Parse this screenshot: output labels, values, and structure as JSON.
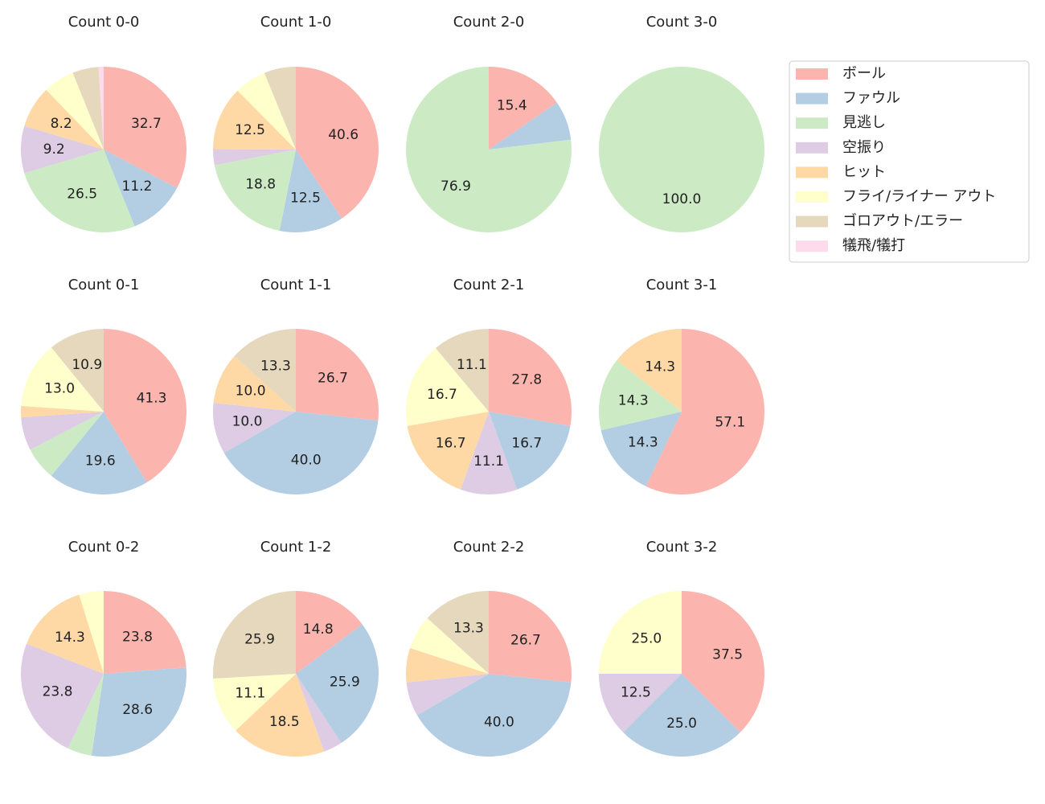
{
  "legend": {
    "labels": [
      "ボール",
      "ファウル",
      "見逃し",
      "空振り",
      "ヒット",
      "フライ/ライナー アウト",
      "ゴロアウト/エラー",
      "犠飛/犠打"
    ],
    "colors": [
      "#fbb4ae",
      "#b3cde3",
      "#ccebc5",
      "#decbe4",
      "#fed9a6",
      "#ffffcc",
      "#e5d8bd",
      "#fddaec"
    ]
  },
  "chart_data": [
    {
      "type": "pie",
      "title": "Count 0-0",
      "values": [
        32.7,
        11.2,
        26.5,
        9.2,
        8.2,
        6.1,
        5.1,
        1.0
      ],
      "value_labels": [
        "32.7",
        "11.2",
        "26.5",
        "9.2",
        "8.2",
        null,
        null,
        null
      ]
    },
    {
      "type": "pie",
      "title": "Count 1-0",
      "values": [
        40.6,
        12.5,
        18.8,
        3.1,
        12.5,
        6.2,
        6.2,
        0
      ],
      "value_labels": [
        "40.6",
        "12.5",
        "18.8",
        null,
        "12.5",
        null,
        null,
        null
      ]
    },
    {
      "type": "pie",
      "title": "Count 2-0",
      "values": [
        15.4,
        7.7,
        76.9,
        0,
        0,
        0,
        0,
        0
      ],
      "value_labels": [
        "15.4",
        null,
        "76.9",
        null,
        null,
        null,
        null,
        null
      ]
    },
    {
      "type": "pie",
      "title": "Count 3-0",
      "values": [
        0,
        0,
        100,
        0,
        0,
        0,
        0,
        0
      ],
      "value_labels": [
        null,
        null,
        "100.0",
        null,
        null,
        null,
        null,
        null
      ]
    },
    {
      "type": "pie",
      "title": "Count 0-1",
      "values": [
        41.3,
        19.6,
        6.5,
        6.5,
        2.2,
        13.0,
        10.9,
        0
      ],
      "value_labels": [
        "41.3",
        "19.6",
        null,
        null,
        null,
        "13.0",
        "10.9",
        null
      ]
    },
    {
      "type": "pie",
      "title": "Count 1-1",
      "values": [
        26.7,
        40.0,
        0,
        10.0,
        10.0,
        0,
        13.3,
        0
      ],
      "value_labels": [
        "26.7",
        "40.0",
        null,
        "10.0",
        "10.0",
        null,
        "13.3",
        null
      ]
    },
    {
      "type": "pie",
      "title": "Count 2-1",
      "values": [
        27.8,
        16.7,
        0,
        11.1,
        16.7,
        16.7,
        11.1,
        0
      ],
      "value_labels": [
        "27.8",
        "16.7",
        null,
        "11.1",
        "16.7",
        "16.7",
        "11.1",
        null
      ]
    },
    {
      "type": "pie",
      "title": "Count 3-1",
      "values": [
        57.1,
        14.3,
        14.3,
        0,
        14.3,
        0,
        0,
        0
      ],
      "value_labels": [
        "57.1",
        "14.3",
        "14.3",
        null,
        "14.3",
        null,
        null,
        null
      ]
    },
    {
      "type": "pie",
      "title": "Count 0-2",
      "values": [
        23.8,
        28.6,
        4.8,
        23.8,
        14.3,
        4.8,
        0,
        0
      ],
      "value_labels": [
        "23.8",
        "28.6",
        null,
        "23.8",
        "14.3",
        null,
        null,
        null
      ]
    },
    {
      "type": "pie",
      "title": "Count 1-2",
      "values": [
        14.8,
        25.9,
        0,
        3.7,
        18.5,
        11.1,
        25.9,
        0
      ],
      "value_labels": [
        "14.8",
        "25.9",
        null,
        null,
        "18.5",
        "11.1",
        "25.9",
        null
      ]
    },
    {
      "type": "pie",
      "title": "Count 2-2",
      "values": [
        26.7,
        40.0,
        0,
        6.7,
        6.7,
        6.7,
        13.3,
        0
      ],
      "value_labels": [
        "26.7",
        "40.0",
        null,
        null,
        null,
        null,
        "13.3",
        null
      ]
    },
    {
      "type": "pie",
      "title": "Count 3-2",
      "values": [
        37.5,
        25.0,
        0,
        12.5,
        0,
        25.0,
        0,
        0
      ],
      "value_labels": [
        "37.5",
        "25.0",
        null,
        "12.5",
        null,
        "25.0",
        null,
        null
      ]
    }
  ]
}
